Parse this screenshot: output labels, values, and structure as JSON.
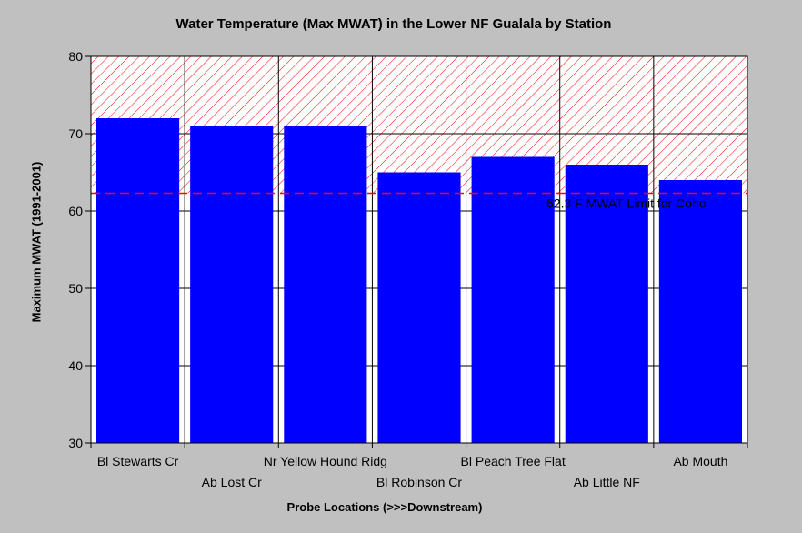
{
  "chart_data": {
    "type": "bar",
    "title": "Water Temperature (Max MWAT) in the Lower NF Gualala by Station",
    "xlabel": "Probe Locations (>>>Downstream)",
    "ylabel": "Maximum MWAT (1991-2001)",
    "categories": [
      "Bl Stewarts Cr",
      "Ab Lost Cr",
      "Nr Yellow Hound Ridg",
      "Bl Robinson Cr",
      "Bl Peach Tree Flat",
      "Ab Little NF",
      "Ab Mouth"
    ],
    "values": [
      72,
      71,
      71,
      65,
      67,
      66,
      64
    ],
    "ylim": [
      30,
      80
    ],
    "yticks": [
      30,
      40,
      50,
      60,
      70,
      80
    ],
    "grid": true,
    "bar_color": "#0000ff",
    "threshold": {
      "value": 62.3,
      "label": "62.3 F MWAT Limit for Coho",
      "color": "#ff0000",
      "hatch_above": true
    }
  }
}
